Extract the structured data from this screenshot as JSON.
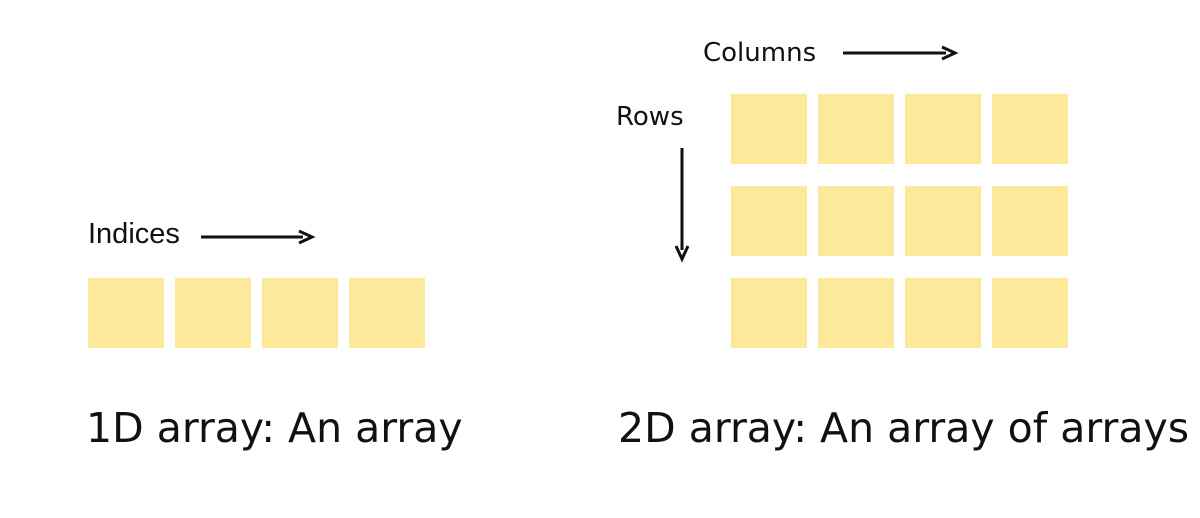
{
  "colors": {
    "cell_fill": "#fde99a",
    "arrow": "#111111",
    "text": "#111111"
  },
  "one_d": {
    "indices_label": "Indices",
    "caption": "1D array: An array",
    "cell_count": 4
  },
  "two_d": {
    "columns_label": "Columns",
    "rows_label": "Rows",
    "caption": "2D array: An array of arrays",
    "rows": 3,
    "columns": 4
  }
}
